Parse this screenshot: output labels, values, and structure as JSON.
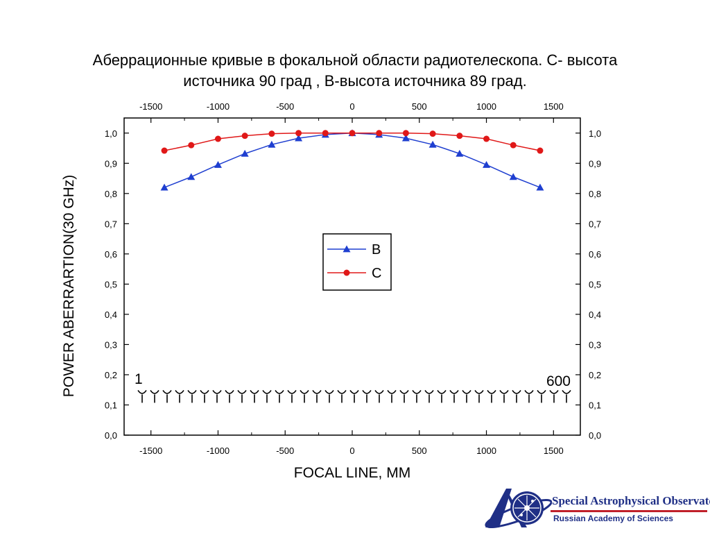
{
  "title": {
    "line1": "Аберрационные кривые в фокальной области радиотелескопа. С- высота",
    "line2": "источника 90 град , В-высота источника 89 град."
  },
  "chart_data": {
    "type": "line",
    "xlabel": "FOCAL LINE, MM",
    "ylabel": "POWER ABERRARTION(30 GHz)",
    "xlim": [
      -1700,
      1700
    ],
    "ylim": [
      0.0,
      1.05
    ],
    "x_ticks": [
      -1500,
      -1000,
      -500,
      0,
      500,
      1000,
      1500
    ],
    "x_tick_labels": [
      "-1500",
      "-1000",
      "-500",
      "0",
      "500",
      "1000",
      "1500"
    ],
    "y_ticks": [
      0.0,
      0.1,
      0.2,
      0.3,
      0.4,
      0.5,
      0.6,
      0.7,
      0.8,
      0.9,
      1.0
    ],
    "y_tick_labels": [
      "0,0",
      "0,1",
      "0,2",
      "0,3",
      "0,4",
      "0,5",
      "0,6",
      "0,7",
      "0,8",
      "0,9",
      "1,0"
    ],
    "grid": false,
    "legend_position": "center",
    "mirror_axes": true,
    "series": [
      {
        "name": "B",
        "color": "#1f3fd0",
        "marker": "triangle",
        "x": [
          -1400,
          -1200,
          -1000,
          -800,
          -600,
          -400,
          -200,
          0,
          200,
          400,
          600,
          800,
          1000,
          1200,
          1400
        ],
        "values": [
          0.82,
          0.855,
          0.895,
          0.932,
          0.962,
          0.983,
          0.995,
          1.0,
          0.995,
          0.983,
          0.962,
          0.932,
          0.895,
          0.855,
          0.82
        ]
      },
      {
        "name": "C",
        "color": "#e01818",
        "marker": "circle",
        "x": [
          -1400,
          -1200,
          -1000,
          -800,
          -600,
          -400,
          -200,
          0,
          200,
          400,
          600,
          800,
          1000,
          1200,
          1400
        ],
        "values": [
          0.942,
          0.96,
          0.981,
          0.991,
          0.998,
          1.0,
          1.0,
          1.0,
          1.0,
          1.0,
          0.998,
          0.991,
          0.981,
          0.96,
          0.942
        ]
      }
    ],
    "annotations": {
      "left_label": "1",
      "right_label": "600",
      "array_level": 0.13,
      "array_count": 35
    }
  },
  "logo": {
    "title": "Special Astrophysical Observatory",
    "subtitle": "Russian Academy of Sciences",
    "accent": "#1f2f86",
    "bar": "#c0202a"
  }
}
